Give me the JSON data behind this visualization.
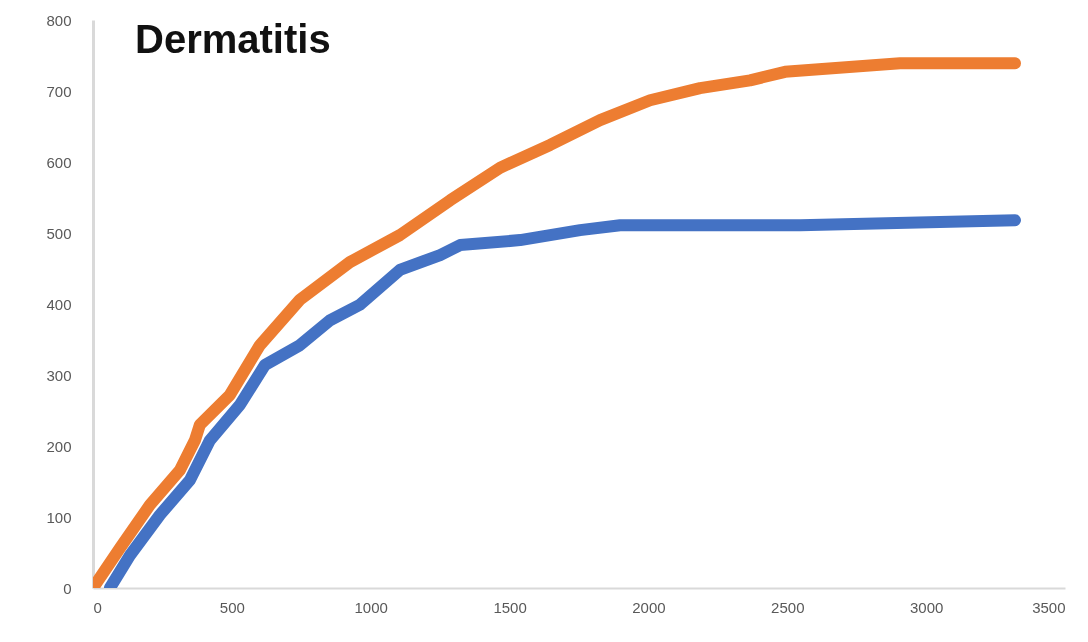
{
  "chart_data": {
    "type": "line",
    "title": "Dermatitis",
    "xlim": [
      0,
      3500
    ],
    "xticks": [
      0,
      500,
      1000,
      1500,
      2000,
      2500,
      3000,
      3500
    ],
    "ylim": [
      0,
      800
    ],
    "yticks": [
      0,
      100,
      200,
      300,
      400,
      500,
      600,
      700,
      800
    ],
    "grid": false,
    "marker": "none",
    "line_style": "solid",
    "series": [
      {
        "color": "#4472c4",
        "x": [
          61,
          133,
          241,
          349,
          421,
          529,
          619,
          745,
          853,
          961,
          1105,
          1250,
          1322,
          1538,
          1754,
          1898,
          2546,
          3320
        ],
        "values": [
          0,
          46,
          103,
          152,
          208,
          258,
          314,
          342,
          377,
          399,
          448,
          469,
          483,
          490,
          504,
          511,
          511,
          518
        ]
      },
      {
        "color": "#ed7d31",
        "x": [
          0,
          97,
          205,
          313,
          367,
          385,
          493,
          601,
          745,
          925,
          1105,
          1286,
          1466,
          1646,
          1826,
          2006,
          2186,
          2366,
          2492,
          2906,
          3320
        ],
        "values": [
          0,
          56,
          117,
          166,
          208,
          230,
          272,
          342,
          406,
          459,
          497,
          546,
          592,
          624,
          659,
          687,
          704,
          715,
          727,
          739,
          739
        ]
      }
    ]
  }
}
